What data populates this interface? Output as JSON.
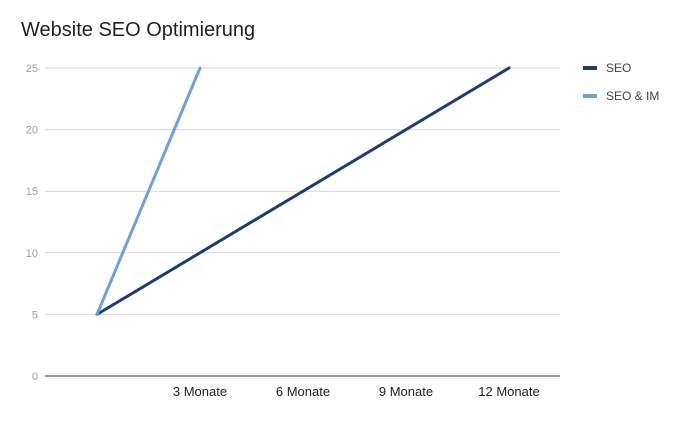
{
  "chart_data": {
    "type": "line",
    "title": "Website SEO Optimierung",
    "x": [
      0,
      1,
      2,
      3,
      4
    ],
    "categories": [
      "",
      "3 Monate",
      "6 Monate",
      "9 Monate",
      "12 Monate"
    ],
    "xlabel": "",
    "ylabel": "",
    "ylim": [
      0,
      25
    ],
    "yticks": [
      0,
      5,
      10,
      15,
      20,
      25
    ],
    "grid": true,
    "legend_position": "right",
    "series": [
      {
        "name": "SEO",
        "color": "#1e3d73",
        "x": [
          0,
          4
        ],
        "values": [
          5,
          25
        ]
      },
      {
        "name": "SEO  & IM",
        "color": "#6f9fdc",
        "x": [
          0,
          1
        ],
        "values": [
          5,
          25
        ]
      }
    ]
  }
}
